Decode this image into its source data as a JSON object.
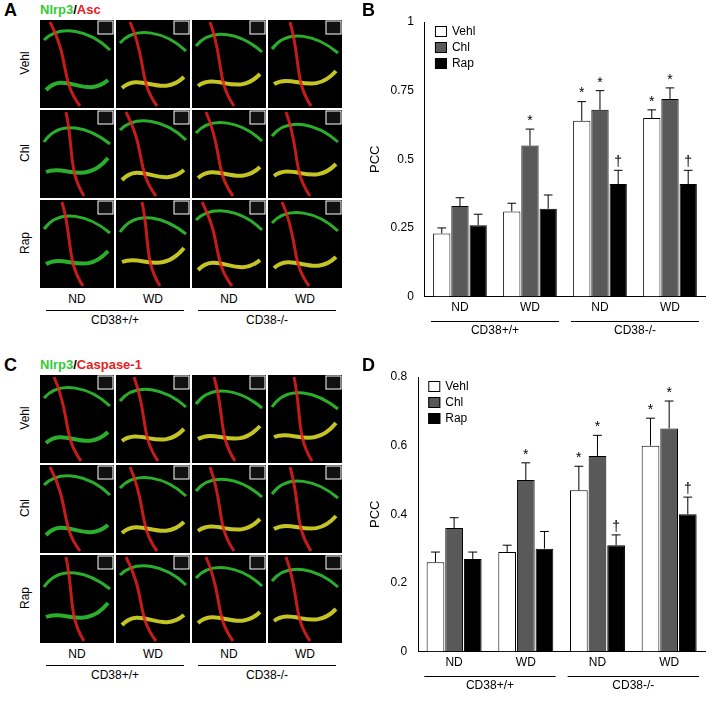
{
  "image_panels": [
    {
      "panel_label": "A",
      "title": "Nlrp3/Asc",
      "channels": [
        {
          "name": "Nlrp3",
          "color": "#33cc33"
        },
        {
          "name": "Asc",
          "color": "#e82020"
        }
      ],
      "rows": [
        "Vehl",
        "Chl",
        "Rap"
      ],
      "columns": [
        "ND",
        "WD",
        "ND",
        "WD"
      ],
      "groups": [
        "CD38+/+",
        "CD38-/-"
      ]
    },
    {
      "panel_label": "C",
      "title": "Nlrp3/Caspase-1",
      "channels": [
        {
          "name": "Nlrp3",
          "color": "#33cc33"
        },
        {
          "name": "Caspase-1",
          "color": "#e82020"
        }
      ],
      "rows": [
        "Vehl",
        "Chl",
        "Rap"
      ],
      "columns": [
        "ND",
        "WD",
        "ND",
        "WD"
      ],
      "groups": [
        "CD38+/+",
        "CD38-/-"
      ]
    }
  ],
  "chart_data": [
    {
      "type": "bar",
      "panel_label": "B",
      "y_label": "PCC",
      "categories": [
        "ND",
        "WD",
        "ND",
        "WD"
      ],
      "groups": [
        "CD38+/+",
        "CD38-/-"
      ],
      "ylim": [
        0,
        1
      ],
      "yticks": [
        0,
        0.25,
        0.5,
        0.75,
        1
      ],
      "grid": false,
      "legend": "upper left",
      "series": [
        {
          "name": "Vehl",
          "color": "#ffffff",
          "values": [
            0.23,
            0.31,
            0.64,
            0.65
          ],
          "errors": [
            0.02,
            0.03,
            0.07,
            0.03
          ],
          "significance": [
            null,
            null,
            "*",
            "*"
          ]
        },
        {
          "name": "Chl",
          "color": "#595959",
          "values": [
            0.33,
            0.55,
            0.68,
            0.72
          ],
          "errors": [
            0.03,
            0.06,
            0.07,
            0.04
          ],
          "significance": [
            null,
            "*",
            "*",
            "*"
          ]
        },
        {
          "name": "Rap",
          "color": "#000000",
          "values": [
            0.26,
            0.32,
            0.41,
            0.41
          ],
          "errors": [
            0.04,
            0.05,
            0.05,
            0.05
          ],
          "significance": [
            null,
            null,
            "†",
            "†"
          ]
        }
      ]
    },
    {
      "type": "bar",
      "panel_label": "D",
      "y_label": "PCC",
      "categories": [
        "ND",
        "WD",
        "ND",
        "WD"
      ],
      "groups": [
        "CD38+/+",
        "CD38-/-"
      ],
      "ylim": [
        0,
        0.8
      ],
      "yticks": [
        0,
        0.2,
        0.4,
        0.6,
        0.8
      ],
      "grid": false,
      "legend": "upper left",
      "series": [
        {
          "name": "Vehl",
          "color": "#ffffff",
          "values": [
            0.26,
            0.29,
            0.47,
            0.6
          ],
          "errors": [
            0.03,
            0.02,
            0.07,
            0.08
          ],
          "significance": [
            null,
            null,
            "*",
            "*"
          ]
        },
        {
          "name": "Chl",
          "color": "#595959",
          "values": [
            0.36,
            0.5,
            0.57,
            0.65
          ],
          "errors": [
            0.03,
            0.05,
            0.06,
            0.08
          ],
          "significance": [
            null,
            "*",
            "*",
            "*"
          ]
        },
        {
          "name": "Rap",
          "color": "#000000",
          "values": [
            0.27,
            0.3,
            0.31,
            0.4
          ],
          "errors": [
            0.02,
            0.05,
            0.03,
            0.05
          ],
          "significance": [
            null,
            null,
            "†",
            "†"
          ]
        }
      ]
    }
  ]
}
